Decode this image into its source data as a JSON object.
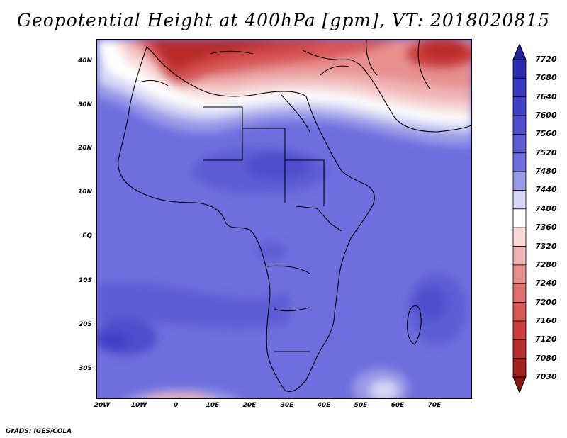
{
  "title": "Geopotential Height at 400hPa [gpm], VT: 2018020815",
  "footer": "GrADS: IGES/COLA",
  "map": {
    "region": "Africa",
    "lat_labels": [
      "40N",
      "30N",
      "20N",
      "10N",
      "EQ",
      "10S",
      "20S",
      "30S"
    ],
    "lon_labels": [
      "20W",
      "10W",
      "0",
      "10E",
      "20E",
      "30E",
      "40E",
      "50E",
      "60E",
      "70E"
    ]
  },
  "colorbar": {
    "levels": [
      "7720",
      "7680",
      "7640",
      "7600",
      "7560",
      "7520",
      "7480",
      "7440",
      "7400",
      "7360",
      "7320",
      "7280",
      "7240",
      "7200",
      "7160",
      "7120",
      "7080",
      "7030"
    ],
    "colors": [
      "#23239a",
      "#2b2bb0",
      "#3535c0",
      "#3f3fc8",
      "#4d4dcd",
      "#5c5cd4",
      "#6e6ede",
      "#9a9ae8",
      "#d6d6f4",
      "#ffffff",
      "#f8d8d8",
      "#f0b4b4",
      "#e89090",
      "#e07070",
      "#d85656",
      "#cc3e3e",
      "#b82b2b",
      "#a01f1f",
      "#8a1515"
    ]
  }
}
